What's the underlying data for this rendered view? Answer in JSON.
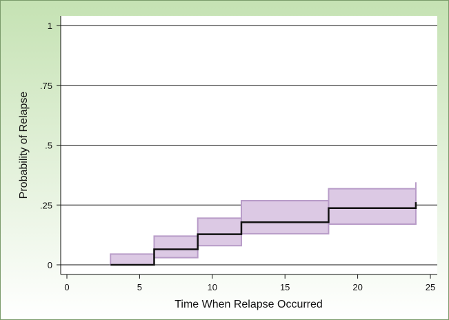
{
  "chart_data": {
    "type": "line",
    "title": "",
    "xlabel": "Time When Relapse Occurred",
    "ylabel": "Probability of Relapse",
    "xlim": [
      0,
      25
    ],
    "ylim": [
      0,
      1
    ],
    "x_ticks": [
      0,
      5,
      10,
      15,
      20,
      25
    ],
    "x_tick_labels": [
      "0",
      "5",
      "10",
      "15",
      "20",
      "25"
    ],
    "y_ticks": [
      0,
      0.25,
      0.5,
      0.75,
      1
    ],
    "y_tick_labels": [
      "0",
      ".25",
      ".5",
      ".75",
      "1"
    ],
    "grid": "horizontal",
    "series": [
      {
        "style": "step",
        "x": [
          3,
          6,
          9,
          12,
          18,
          24
        ],
        "y": [
          0.0,
          0.065,
          0.128,
          0.178,
          0.237,
          0.262
        ]
      }
    ],
    "confidence_band": {
      "x": [
        3,
        6,
        9,
        12,
        18,
        24
      ],
      "lower": [
        0.0,
        0.03,
        0.08,
        0.13,
        0.17,
        0.175
      ],
      "upper": [
        0.045,
        0.12,
        0.195,
        0.268,
        0.318,
        0.345
      ]
    },
    "colors": {
      "background_top": "#c5e2b3",
      "background_bottom": "#ffffff",
      "band_fill": "#dcc9e4",
      "band_edge": "#b89cc8",
      "line": "#111111",
      "grid": "#111111"
    }
  }
}
